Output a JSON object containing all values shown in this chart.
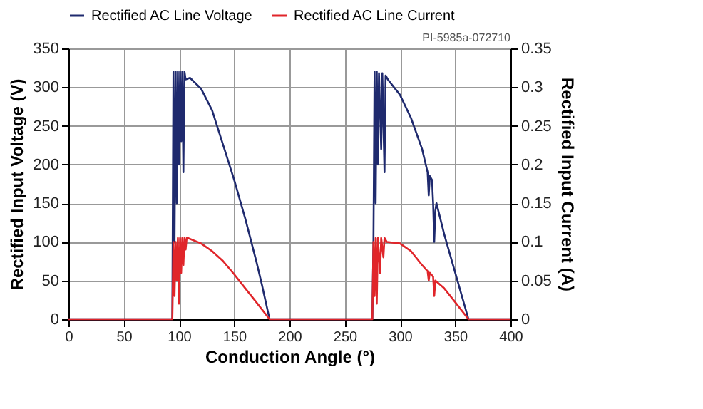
{
  "chart_data": {
    "type": "line",
    "xlabel": "Conduction Angle (°)",
    "ylabel": "Rectified Input Voltage (V)",
    "y2label": "Rectified Input Current (A)",
    "annotations": [
      "PI-5985a-072710"
    ],
    "xlim": [
      0,
      400
    ],
    "xticks": [
      0,
      50,
      100,
      150,
      200,
      250,
      300,
      350,
      400
    ],
    "ylim": [
      0,
      350
    ],
    "yticks": [
      0,
      50,
      100,
      150,
      200,
      250,
      300,
      350
    ],
    "y2lim": [
      0,
      0.35
    ],
    "y2ticks": [
      0,
      0.05,
      0.1,
      0.15,
      0.2,
      0.25,
      0.3,
      0.35
    ],
    "grid": true,
    "legend": "top",
    "marker": "none",
    "line_style": "solid",
    "series": [
      {
        "name": "Rectified AC Line Voltage",
        "color": "#1f2a6e",
        "x": [
          0,
          94,
          95,
          96,
          97,
          98,
          99,
          100,
          101,
          102,
          103,
          104,
          105,
          106,
          110,
          120,
          130,
          140,
          150,
          160,
          170,
          175,
          182,
          275,
          276,
          277,
          278,
          279,
          280,
          281,
          283,
          284,
          286,
          287,
          289,
          300,
          310,
          320,
          325,
          326,
          327,
          329,
          330,
          331,
          332,
          333,
          340,
          350,
          362,
          400
        ],
        "values": [
          0,
          0,
          320,
          100,
          320,
          150,
          320,
          200,
          320,
          230,
          320,
          190,
          320,
          310,
          312,
          298,
          270,
          225,
          180,
          130,
          75,
          45,
          0,
          0,
          100,
          320,
          150,
          320,
          200,
          318,
          220,
          318,
          190,
          315,
          310,
          290,
          260,
          220,
          190,
          160,
          185,
          180,
          150,
          100,
          140,
          150,
          110,
          60,
          0,
          0
        ]
      },
      {
        "name": "Rectified AC Line Current",
        "color": "#e0252a",
        "axis": "y2",
        "x": [
          0,
          94,
          95,
          96,
          97,
          98,
          99,
          100,
          101,
          102,
          103,
          104,
          105,
          106,
          107,
          108,
          120,
          130,
          140,
          150,
          160,
          170,
          182,
          275,
          276,
          277,
          278,
          279,
          280,
          282,
          283,
          285,
          286,
          288,
          300,
          310,
          320,
          325,
          326,
          327,
          330,
          331,
          332,
          340,
          350,
          362,
          400
        ],
        "values": [
          0,
          0,
          0.1,
          0.03,
          0.1,
          0.05,
          0.105,
          0.02,
          0.105,
          0.06,
          0.105,
          0.07,
          0.105,
          0.09,
          0.105,
          0.105,
          0.098,
          0.088,
          0.075,
          0.058,
          0.04,
          0.022,
          0,
          0,
          0.1,
          0.03,
          0.105,
          0.02,
          0.105,
          0.06,
          0.105,
          0.08,
          0.105,
          0.1,
          0.098,
          0.088,
          0.07,
          0.062,
          0.05,
          0.06,
          0.055,
          0.03,
          0.05,
          0.04,
          0.022,
          0,
          0
        ]
      }
    ]
  }
}
